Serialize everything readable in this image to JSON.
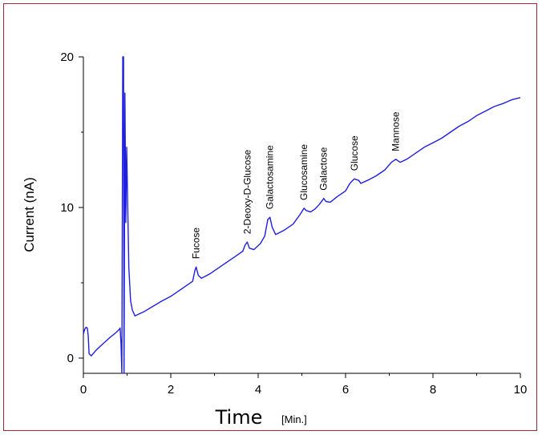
{
  "chart_data": {
    "type": "line",
    "ylabel": "Current (nA)",
    "xlabel": "Time",
    "xunit": "[Min.]",
    "xlim": [
      0,
      10
    ],
    "ylim": [
      -0.5,
      20
    ],
    "x_ticks": [
      0,
      2,
      4,
      6,
      8,
      10
    ],
    "y_ticks": [
      0,
      10,
      20
    ],
    "line_color": "#1f1fe0",
    "grid": false,
    "series": [
      {
        "points": [
          [
            0,
            1.6
          ],
          [
            0.03,
            1.9
          ],
          [
            0.06,
            2.05
          ],
          [
            0.09,
            2.0
          ],
          [
            0.11,
            1.5
          ],
          [
            0.13,
            0.3
          ],
          [
            0.18,
            0.15
          ],
          [
            0.3,
            0.55
          ],
          [
            0.45,
            0.95
          ],
          [
            0.6,
            1.35
          ],
          [
            0.75,
            1.7
          ],
          [
            0.82,
            1.9
          ],
          [
            0.84,
            2.0
          ],
          [
            0.86,
            1.0
          ],
          [
            0.88,
            -1.0
          ],
          [
            0.9,
            20.0
          ],
          [
            0.92,
            20.0
          ],
          [
            0.93,
            -1.0
          ],
          [
            0.95,
            17.6
          ],
          [
            0.97,
            9.0
          ],
          [
            0.99,
            14.0
          ],
          [
            1.01,
            11.0
          ],
          [
            1.04,
            6.0
          ],
          [
            1.08,
            3.8
          ],
          [
            1.12,
            3.2
          ],
          [
            1.18,
            2.8
          ],
          [
            1.25,
            2.9
          ],
          [
            1.4,
            3.1
          ],
          [
            1.6,
            3.45
          ],
          [
            1.8,
            3.8
          ],
          [
            2.0,
            4.1
          ],
          [
            2.2,
            4.5
          ],
          [
            2.4,
            4.9
          ],
          [
            2.5,
            5.1
          ],
          [
            2.55,
            5.8
          ],
          [
            2.58,
            6.05
          ],
          [
            2.63,
            5.5
          ],
          [
            2.7,
            5.3
          ],
          [
            2.9,
            5.6
          ],
          [
            3.1,
            6.0
          ],
          [
            3.3,
            6.4
          ],
          [
            3.5,
            6.8
          ],
          [
            3.65,
            7.1
          ],
          [
            3.7,
            7.5
          ],
          [
            3.75,
            7.7
          ],
          [
            3.8,
            7.3
          ],
          [
            3.9,
            7.2
          ],
          [
            4.05,
            7.6
          ],
          [
            4.15,
            8.1
          ],
          [
            4.22,
            9.2
          ],
          [
            4.27,
            9.35
          ],
          [
            4.32,
            8.7
          ],
          [
            4.4,
            8.2
          ],
          [
            4.6,
            8.5
          ],
          [
            4.8,
            8.9
          ],
          [
            4.95,
            9.5
          ],
          [
            5.05,
            9.95
          ],
          [
            5.1,
            9.8
          ],
          [
            5.2,
            9.7
          ],
          [
            5.3,
            9.9
          ],
          [
            5.4,
            10.2
          ],
          [
            5.5,
            10.6
          ],
          [
            5.55,
            10.4
          ],
          [
            5.65,
            10.35
          ],
          [
            5.8,
            10.7
          ],
          [
            6.0,
            11.1
          ],
          [
            6.1,
            11.6
          ],
          [
            6.2,
            11.9
          ],
          [
            6.3,
            11.8
          ],
          [
            6.35,
            11.6
          ],
          [
            6.5,
            11.8
          ],
          [
            6.7,
            12.1
          ],
          [
            6.9,
            12.5
          ],
          [
            7.05,
            13.0
          ],
          [
            7.15,
            13.2
          ],
          [
            7.25,
            13.0
          ],
          [
            7.4,
            13.2
          ],
          [
            7.6,
            13.6
          ],
          [
            7.8,
            14.0
          ],
          [
            8.0,
            14.3
          ],
          [
            8.2,
            14.6
          ],
          [
            8.4,
            15.0
          ],
          [
            8.6,
            15.4
          ],
          [
            8.8,
            15.7
          ],
          [
            9.0,
            16.1
          ],
          [
            9.2,
            16.4
          ],
          [
            9.4,
            16.7
          ],
          [
            9.6,
            16.9
          ],
          [
            9.8,
            17.15
          ],
          [
            10.0,
            17.3
          ]
        ]
      }
    ],
    "annotations": [
      {
        "text": "Fucose",
        "x": 2.58
      },
      {
        "text": "2-Deoxy-D-Glucose",
        "x": 3.75
      },
      {
        "text": "Galactosamine",
        "x": 4.27
      },
      {
        "text": "Glucosamine",
        "x": 5.05
      },
      {
        "text": "Galactose",
        "x": 5.5
      },
      {
        "text": "Glucose",
        "x": 6.2
      },
      {
        "text": "Mannose",
        "x": 7.15
      }
    ]
  },
  "colors": {
    "frame_border": "#9b2d3a",
    "line": "#1f1fe0"
  }
}
